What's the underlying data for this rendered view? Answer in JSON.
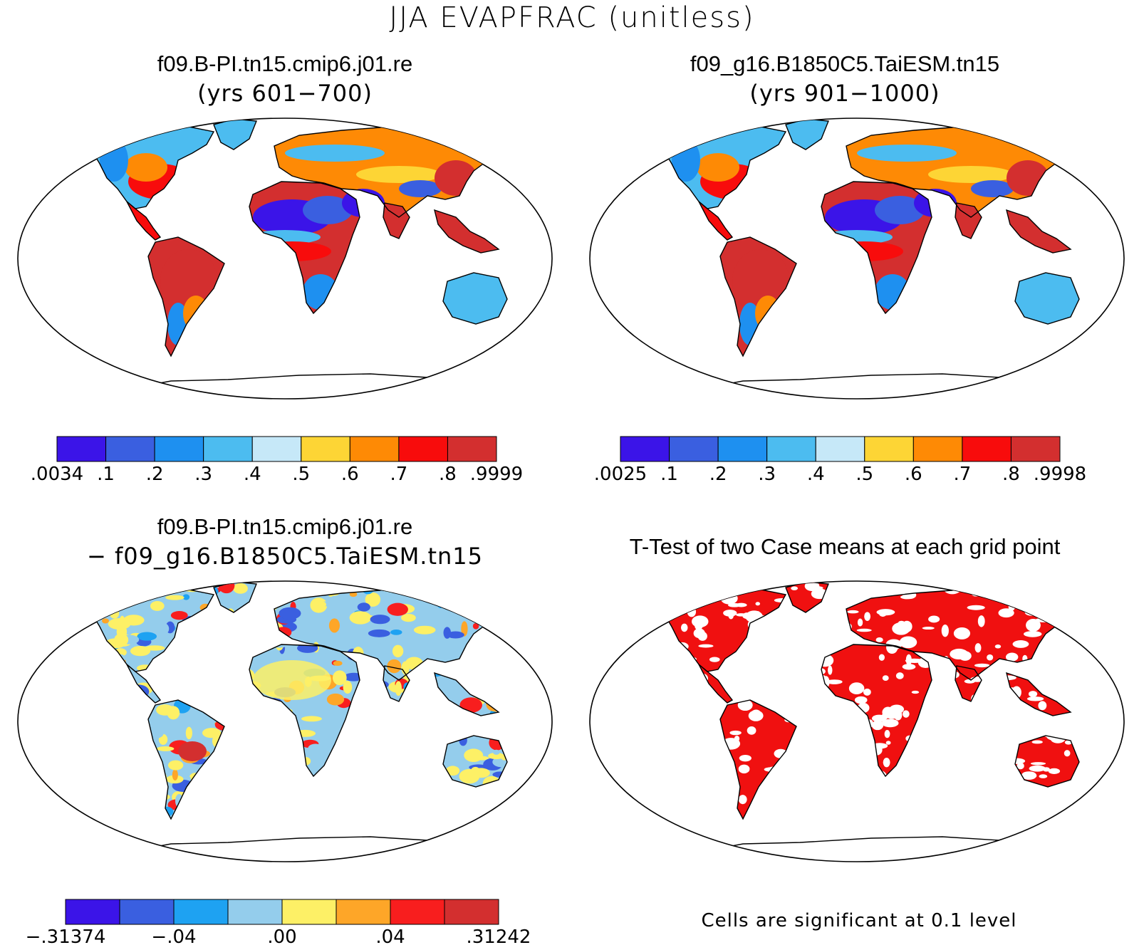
{
  "figure": {
    "title": "JJA EVAPFRAC (unitless)"
  },
  "panels": [
    {
      "title": "f09.B-PI.tn15.cmip6.j01.re",
      "subtitle": "(yrs 601−700)",
      "colorbar": {
        "colors": [
          "#3b14e8",
          "#3a5fe0",
          "#1e90f0",
          "#4cbcf0",
          "#c6e8f8",
          "#fdd535",
          "#fe8a05",
          "#f80c0c",
          "#d32f2f"
        ],
        "labels": [
          ".0034",
          ".1",
          ".2",
          ".3",
          ".4",
          ".5",
          ".6",
          ".7",
          ".8",
          ".9999"
        ]
      }
    },
    {
      "title": "f09_g16.B1850C5.TaiESM.tn15",
      "subtitle": "(yrs 901−1000)",
      "colorbar": {
        "colors": [
          "#3b14e8",
          "#3a5fe0",
          "#1e90f0",
          "#4cbcf0",
          "#c6e8f8",
          "#fdd535",
          "#fe8a05",
          "#f80c0c",
          "#d32f2f"
        ],
        "labels": [
          ".0025",
          ".1",
          ".2",
          ".3",
          ".4",
          ".5",
          ".6",
          ".7",
          ".8",
          ".9998"
        ]
      }
    },
    {
      "title": "f09.B-PI.tn15.cmip6.j01.re",
      "subtitle": "− f09_g16.B1850C5.TaiESM.tn15",
      "colorbar": {
        "colors": [
          "#3b14e8",
          "#3a5fe0",
          "#1ea2f2",
          "#94cdec",
          "#fdf066",
          "#fea628",
          "#f81e1e",
          "#d32f2f"
        ],
        "labels": [
          "−.31374",
          "−.04",
          ".00",
          ".04",
          ".31242"
        ]
      }
    },
    {
      "title": "T-Test of two Case means at each grid point",
      "note": "Cells are significant at 0.1 level",
      "fill_color": "#f01010"
    }
  ],
  "colors": {
    "desert": "#3b14e8",
    "dry": "#3a8ee8",
    "mid": "#fdd535",
    "wet": "#d32f2f",
    "warm": "#fe8a05",
    "significant": "#f01010"
  }
}
